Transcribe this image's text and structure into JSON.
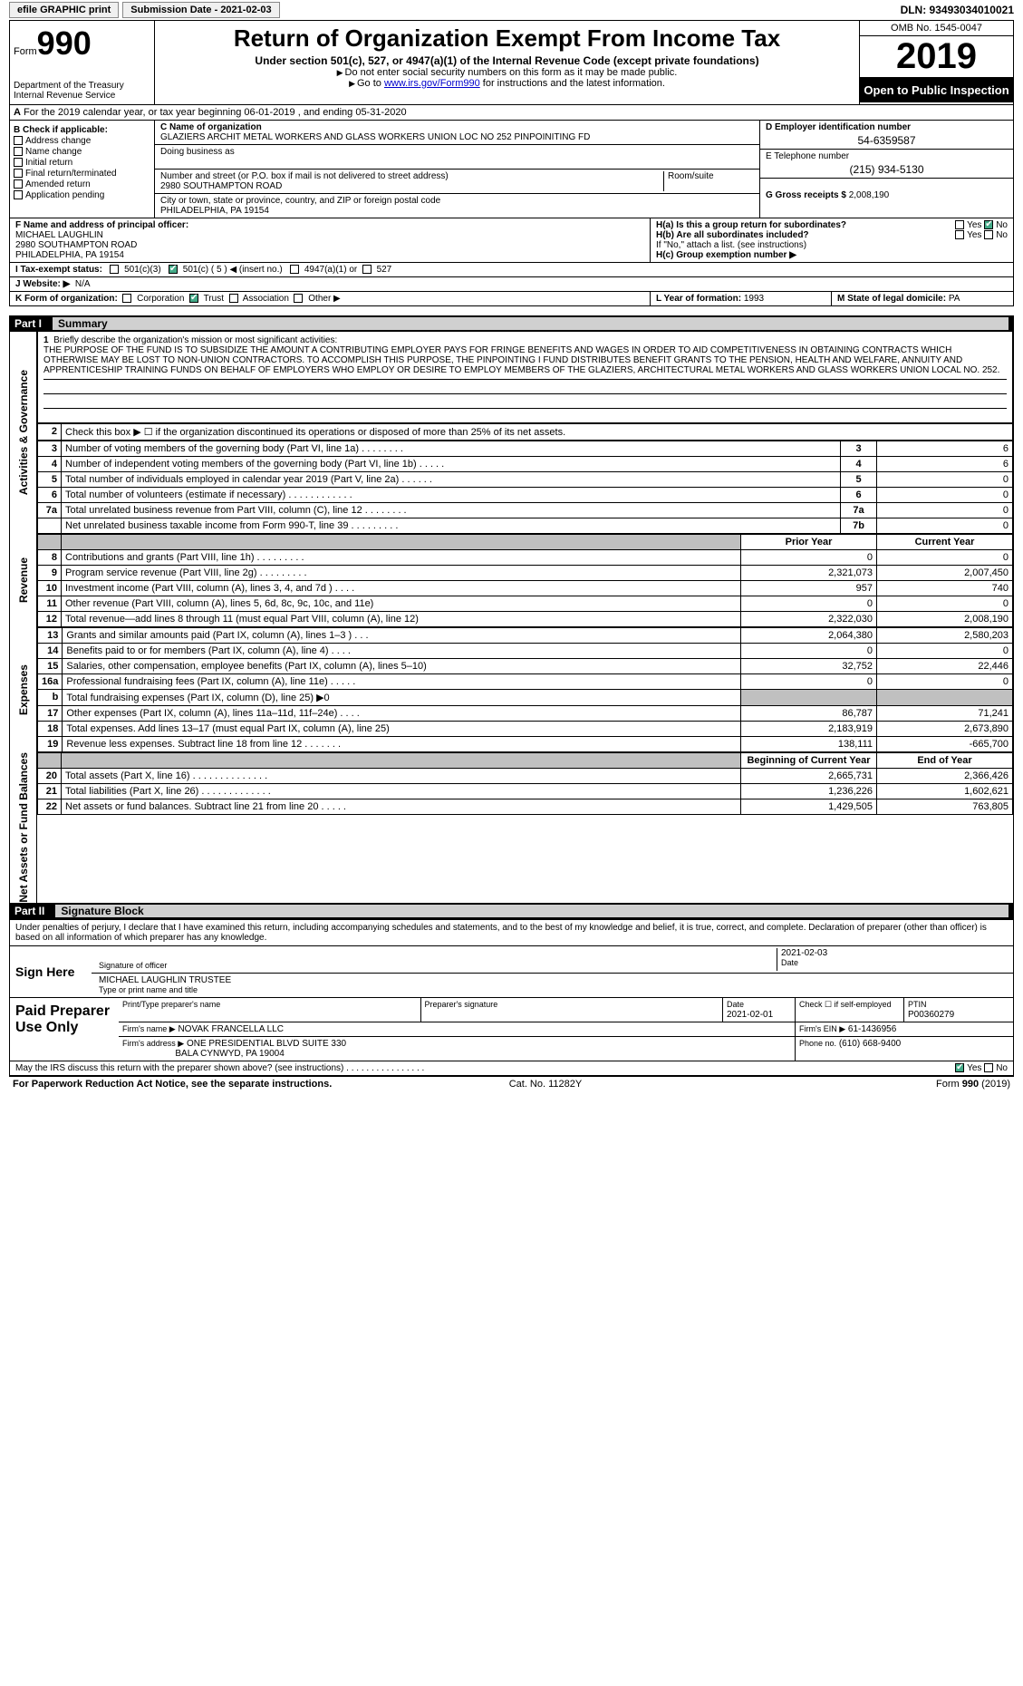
{
  "topbar": {
    "efile": "efile GRAPHIC print",
    "submission": "Submission Date - 2021-02-03",
    "dln": "DLN: 93493034010021"
  },
  "header": {
    "form_label": "Form",
    "form_num": "990",
    "dept": "Department of the Treasury Internal Revenue Service",
    "title": "Return of Organization Exempt From Income Tax",
    "subtitle": "Under section 501(c), 527, or 4947(a)(1) of the Internal Revenue Code (except private foundations)",
    "note1": "Do not enter social security numbers on this form as it may be made public.",
    "note2_pre": "Go to ",
    "note2_link": "www.irs.gov/Form990",
    "note2_post": " for instructions and the latest information.",
    "omb": "OMB No. 1545-0047",
    "year": "2019",
    "inspection": "Open to Public Inspection"
  },
  "a": {
    "text": "For the 2019 calendar year, or tax year beginning 06-01-2019   , and ending 05-31-2020"
  },
  "b": {
    "title": "B Check if applicable:",
    "items": [
      "Address change",
      "Name change",
      "Initial return",
      "Final return/terminated",
      "Amended return",
      "Application pending"
    ]
  },
  "c": {
    "name_lbl": "C Name of organization",
    "name": "GLAZIERS ARCHIT METAL WORKERS AND GLASS WORKERS UNION LOC NO 252 PINPOINITING FD",
    "dba_lbl": "Doing business as",
    "dba": "",
    "street_lbl": "Number and street (or P.O. box if mail is not delivered to street address)",
    "street": "2980 SOUTHAMPTON ROAD",
    "room_lbl": "Room/suite",
    "city_lbl": "City or town, state or province, country, and ZIP or foreign postal code",
    "city": "PHILADELPHIA, PA  19154"
  },
  "d": {
    "lbl": "D Employer identification number",
    "val": "54-6359587"
  },
  "e": {
    "lbl": "E Telephone number",
    "val": "(215) 934-5130"
  },
  "g": {
    "lbl": "G Gross receipts $",
    "val": "2,008,190"
  },
  "f": {
    "lbl": "F  Name and address of principal officer:",
    "name": "MICHAEL LAUGHLIN",
    "addr1": "2980 SOUTHAMPTON ROAD",
    "addr2": "PHILADELPHIA, PA  19154"
  },
  "h": {
    "a_lbl": "H(a)  Is this a group return for subordinates?",
    "b_lbl": "H(b)  Are all subordinates included?",
    "b_note": "If \"No,\" attach a list. (see instructions)",
    "c_lbl": "H(c)  Group exemption number ▶",
    "yes": "Yes",
    "no": "No"
  },
  "i": {
    "lbl": "I   Tax-exempt status:",
    "o1": "501(c)(3)",
    "o2": "501(c) ( 5 ) ◀ (insert no.)",
    "o3": "4947(a)(1) or",
    "o4": "527"
  },
  "j": {
    "lbl": "J   Website: ▶",
    "val": "N/A"
  },
  "k": {
    "lbl": "K Form of organization:",
    "o1": "Corporation",
    "o2": "Trust",
    "o3": "Association",
    "o4": "Other ▶"
  },
  "l": {
    "lbl": "L Year of formation:",
    "val": "1993"
  },
  "m": {
    "lbl": "M State of legal domicile:",
    "val": "PA"
  },
  "part1": {
    "label": "Part I",
    "title": "Summary"
  },
  "summary": {
    "q1_lbl": "Briefly describe the organization's mission or most significant activities:",
    "q1": "THE PURPOSE OF THE FUND IS TO SUBSIDIZE THE AMOUNT A CONTRIBUTING EMPLOYER PAYS FOR FRINGE BENEFITS AND WAGES IN ORDER TO AID COMPETITIVENESS IN OBTAINING CONTRACTS WHICH OTHERWISE MAY BE LOST TO NON-UNION CONTRACTORS. TO ACCOMPLISH THIS PURPOSE, THE PINPOINTING I FUND DISTRIBUTES BENEFIT GRANTS TO THE PENSION, HEALTH AND WELFARE, ANNUITY AND APPRENTICESHIP TRAINING FUNDS ON BEHALF OF EMPLOYERS WHO EMPLOY OR DESIRE TO EMPLOY MEMBERS OF THE GLAZIERS, ARCHITECTURAL METAL WORKERS AND GLASS WORKERS UNION LOCAL NO. 252.",
    "q2": "Check this box ▶ ☐  if the organization discontinued its operations or disposed of more than 25% of its net assets.",
    "rows_ag": [
      {
        "n": "3",
        "d": "Number of voting members of the governing body (Part VI, line 1a)  .   .   .   .   .   .   .   .",
        "b": "3",
        "v": "6"
      },
      {
        "n": "4",
        "d": "Number of independent voting members of the governing body (Part VI, line 1b)   .   .   .   .   .",
        "b": "4",
        "v": "6"
      },
      {
        "n": "5",
        "d": "Total number of individuals employed in calendar year 2019 (Part V, line 2a)   .   .   .   .   .   .",
        "b": "5",
        "v": "0"
      },
      {
        "n": "6",
        "d": "Total number of volunteers (estimate if necessary)   .   .   .   .   .   .   .   .   .   .   .   .",
        "b": "6",
        "v": "0"
      },
      {
        "n": "7a",
        "d": "Total unrelated business revenue from Part VIII, column (C), line 12   .   .   .   .   .   .   .   .",
        "b": "7a",
        "v": "0"
      },
      {
        "n": "",
        "d": "Net unrelated business taxable income from Form 990-T, line 39   .   .   .   .   .   .   .   .   .",
        "b": "7b",
        "v": "0"
      }
    ],
    "hdr_prior": "Prior Year",
    "hdr_curr": "Current Year",
    "rows_rev": [
      {
        "n": "8",
        "d": "Contributions and grants (Part VIII, line 1h)   .   .   .   .   .   .   .   .   .",
        "p": "0",
        "c": "0"
      },
      {
        "n": "9",
        "d": "Program service revenue (Part VIII, line 2g)   .   .   .   .   .   .   .   .   .",
        "p": "2,321,073",
        "c": "2,007,450"
      },
      {
        "n": "10",
        "d": "Investment income (Part VIII, column (A), lines 3, 4, and 7d )   .   .   .   .",
        "p": "957",
        "c": "740"
      },
      {
        "n": "11",
        "d": "Other revenue (Part VIII, column (A), lines 5, 6d, 8c, 9c, 10c, and 11e)",
        "p": "0",
        "c": "0"
      },
      {
        "n": "12",
        "d": "Total revenue—add lines 8 through 11 (must equal Part VIII, column (A), line 12)",
        "p": "2,322,030",
        "c": "2,008,190"
      }
    ],
    "rows_exp": [
      {
        "n": "13",
        "d": "Grants and similar amounts paid (Part IX, column (A), lines 1–3 )   .   .   .",
        "p": "2,064,380",
        "c": "2,580,203"
      },
      {
        "n": "14",
        "d": "Benefits paid to or for members (Part IX, column (A), line 4)   .   .   .   .",
        "p": "0",
        "c": "0"
      },
      {
        "n": "15",
        "d": "Salaries, other compensation, employee benefits (Part IX, column (A), lines 5–10)",
        "p": "32,752",
        "c": "22,446"
      },
      {
        "n": "16a",
        "d": "Professional fundraising fees (Part IX, column (A), line 11e)   .   .   .   .   .",
        "p": "0",
        "c": "0"
      },
      {
        "n": "b",
        "d": "Total fundraising expenses (Part IX, column (D), line 25) ▶0",
        "p": "",
        "c": "",
        "shade": true
      },
      {
        "n": "17",
        "d": "Other expenses (Part IX, column (A), lines 11a–11d, 11f–24e)   .   .   .   .",
        "p": "86,787",
        "c": "71,241"
      },
      {
        "n": "18",
        "d": "Total expenses. Add lines 13–17 (must equal Part IX, column (A), line 25)",
        "p": "2,183,919",
        "c": "2,673,890"
      },
      {
        "n": "19",
        "d": "Revenue less expenses. Subtract line 18 from line 12   .   .   .   .   .   .   .",
        "p": "138,111",
        "c": "-665,700"
      }
    ],
    "hdr_beg": "Beginning of Current Year",
    "hdr_end": "End of Year",
    "rows_net": [
      {
        "n": "20",
        "d": "Total assets (Part X, line 16)   .   .   .   .   .   .   .   .   .   .   .   .   .   .",
        "p": "2,665,731",
        "c": "2,366,426"
      },
      {
        "n": "21",
        "d": "Total liabilities (Part X, line 26)   .   .   .   .   .   .   .   .   .   .   .   .   .",
        "p": "1,236,226",
        "c": "1,602,621"
      },
      {
        "n": "22",
        "d": "Net assets or fund balances. Subtract line 21 from line 20   .   .   .   .   .",
        "p": "1,429,505",
        "c": "763,805"
      }
    ],
    "vlabels": {
      "ag": "Activities & Governance",
      "rev": "Revenue",
      "exp": "Expenses",
      "net": "Net Assets or Fund Balances"
    }
  },
  "part2": {
    "label": "Part II",
    "title": "Signature Block"
  },
  "sig": {
    "intro": "Under penalties of perjury, I declare that I have examined this return, including accompanying schedules and statements, and to the best of my knowledge and belief, it is true, correct, and complete. Declaration of preparer (other than officer) is based on all information of which preparer has any knowledge.",
    "sign_here": "Sign Here",
    "sig_officer_lbl": "Signature of officer",
    "date": "2021-02-03",
    "date_lbl": "Date",
    "name_title": "MICHAEL LAUGHLIN  TRUSTEE",
    "name_title_lbl": "Type or print name and title",
    "paid_prep": "Paid Preparer Use Only",
    "prep_name_lbl": "Print/Type preparer's name",
    "prep_sig_lbl": "Preparer's signature",
    "prep_date_lbl": "Date",
    "prep_date": "2021-02-01",
    "self_emp": "Check ☐ if self-employed",
    "ptin_lbl": "PTIN",
    "ptin": "P00360279",
    "firm_name_lbl": "Firm's name      ▶",
    "firm_name": "NOVAK FRANCELLA LLC",
    "firm_ein_lbl": "Firm's EIN ▶",
    "firm_ein": "61-1436956",
    "firm_addr_lbl": "Firm's address ▶",
    "firm_addr1": "ONE PRESIDENTIAL BLVD SUITE 330",
    "firm_addr2": "BALA CYNWYD, PA  19004",
    "phone_lbl": "Phone no.",
    "phone": "(610) 668-9400",
    "discuss": "May the IRS discuss this return with the preparer shown above? (see instructions)   .   .   .   .   .   .   .   .   .   .   .   .   .   .   .   .",
    "yes": "Yes",
    "no": "No"
  },
  "footer": {
    "pra": "For Paperwork Reduction Act Notice, see the separate instructions.",
    "cat": "Cat. No. 11282Y",
    "form": "Form 990 (2019)"
  }
}
